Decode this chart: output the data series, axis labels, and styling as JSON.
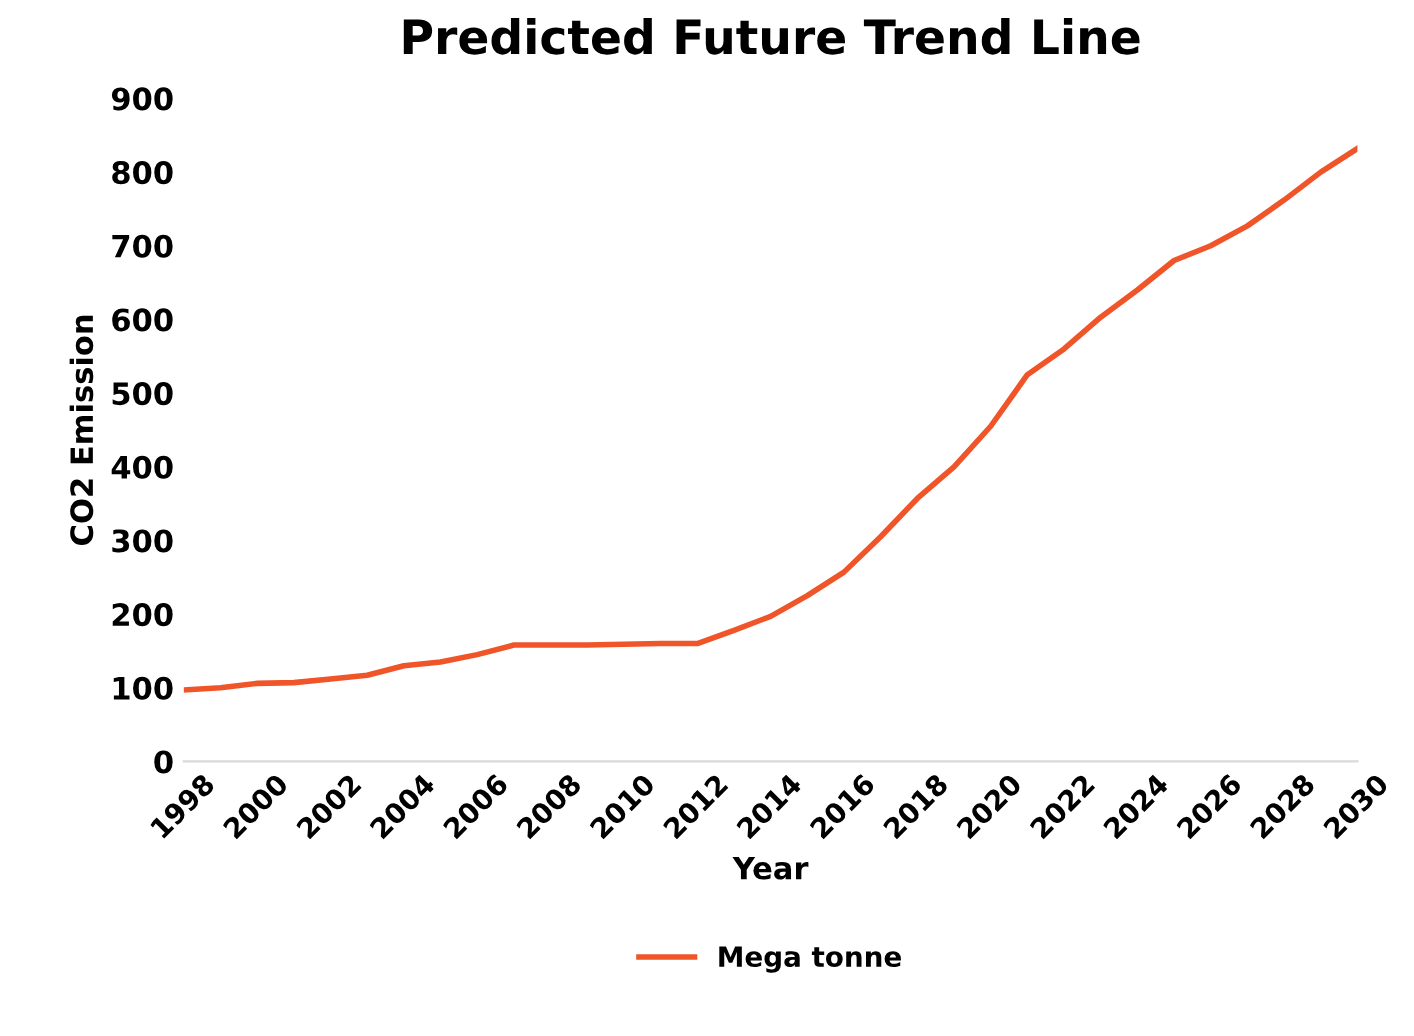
{
  "chart_data": {
    "type": "line",
    "title": "Predicted Future Trend Line",
    "xlabel": "Year",
    "ylabel": "CO2 Emission",
    "x": [
      1998,
      1999,
      2000,
      2001,
      2002,
      2003,
      2004,
      2005,
      2006,
      2007,
      2008,
      2009,
      2010,
      2011,
      2012,
      2013,
      2014,
      2015,
      2016,
      2017,
      2018,
      2019,
      2020,
      2021,
      2022,
      2023,
      2024,
      2025,
      2026,
      2027,
      2028,
      2029,
      2030
    ],
    "series": [
      {
        "name": "Mega tonne",
        "color": "#f0552a",
        "values": [
          97,
          100,
          106,
          107,
          112,
          117,
          130,
          135,
          145,
          158,
          158,
          158,
          159,
          160,
          160,
          178,
          197,
          225,
          257,
          305,
          357,
          400,
          455,
          525,
          560,
          603,
          640,
          680,
          700,
          727,
          762,
          800,
          832
        ]
      }
    ],
    "xlim": [
      1998,
      2030
    ],
    "xticks": [
      1998,
      2000,
      2002,
      2004,
      2006,
      2008,
      2010,
      2012,
      2014,
      2016,
      2018,
      2020,
      2022,
      2024,
      2026,
      2028,
      2030
    ],
    "ylim": [
      0,
      900
    ],
    "yticks": [
      0,
      100,
      200,
      300,
      400,
      500,
      600,
      700,
      800,
      900
    ],
    "grid": false,
    "legend": "bottom",
    "marker": "none",
    "line_style": "solid"
  }
}
